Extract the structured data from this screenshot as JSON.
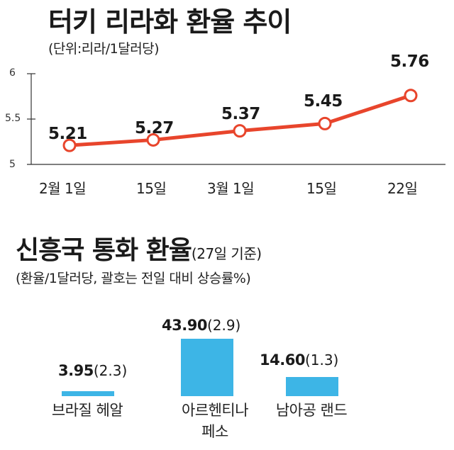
{
  "chart_data": [
    {
      "type": "line",
      "title": "터키 리라화 환율 추이",
      "subtitle": "(단위:리라/1달러당)",
      "categories": [
        "2월 1일",
        "15일",
        "3월 1일",
        "15일",
        "22일"
      ],
      "series": [
        {
          "values": [
            5.21,
            5.27,
            5.37,
            5.45,
            5.76
          ],
          "labels": [
            "5.21",
            "5.27",
            "5.37",
            "5.45",
            "5.76"
          ]
        }
      ],
      "y_ticks": [
        "5",
        "5.5",
        "6"
      ],
      "ylim": [
        5,
        6
      ],
      "grid": false,
      "color": "#e8452c"
    },
    {
      "type": "bar",
      "title": "신흥국 통화 환율",
      "title_note": "(27일 기준)",
      "subtitle": "(환율/1달러당, 괄호는 전일 대비 상승률%)",
      "categories": [
        {
          "lines": [
            "브라질 헤알"
          ]
        },
        {
          "lines": [
            "아르헨티나",
            "페소"
          ]
        },
        {
          "lines": [
            "남아공 랜드"
          ]
        }
      ],
      "values": [
        3.95,
        43.9,
        14.6
      ],
      "value_labels": [
        "3.95",
        "43.90",
        "14.60"
      ],
      "change_labels": [
        "(2.3)",
        "(2.9)",
        "(1.3)"
      ],
      "ylim": [
        0,
        43.9
      ],
      "color": "#3db5e6"
    }
  ]
}
